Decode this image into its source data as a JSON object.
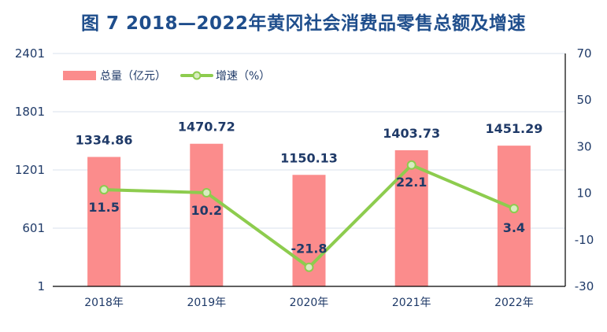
{
  "title": "图 7   2018—2022年黄冈社会消费品零售总额及增速",
  "colors": {
    "bar": "#fb8c8c",
    "line": "#8dcc4e",
    "marker_fill": "#d8ecc0",
    "text": "#1f3a68",
    "axis": "#000000",
    "grid": "#d9e2ec"
  },
  "chart_data": {
    "type": "bar",
    "categories": [
      "2018年",
      "2019年",
      "2020年",
      "2021年",
      "2022年"
    ],
    "series": [
      {
        "name": "总量（亿元）",
        "type": "bar",
        "axis": "left",
        "values": [
          1334.86,
          1470.72,
          1150.13,
          1403.73,
          1451.29
        ],
        "value_labels": [
          "1334.86",
          "1470.72",
          "1150.13",
          "1403.73",
          "1451.29"
        ]
      },
      {
        "name": "增速（%）",
        "type": "line",
        "axis": "right",
        "values": [
          11.5,
          10.2,
          -21.8,
          22.1,
          3.4
        ],
        "value_labels": [
          "11.5",
          "10.2",
          "-21.8",
          "22.1",
          "3.4"
        ]
      }
    ],
    "y_left": {
      "range": [
        1,
        2401
      ],
      "ticks": [
        1,
        601,
        1201,
        1801,
        2401
      ],
      "tick_labels": [
        "1",
        "601",
        "1201",
        "1801",
        "2401"
      ]
    },
    "y_right": {
      "range": [
        -30,
        70
      ],
      "ticks": [
        -30,
        -10,
        10,
        30,
        50,
        70
      ],
      "tick_labels": [
        "-30",
        "-10",
        "10",
        "30",
        "50",
        "70"
      ]
    },
    "grid": true,
    "legend_position": "top-left"
  }
}
